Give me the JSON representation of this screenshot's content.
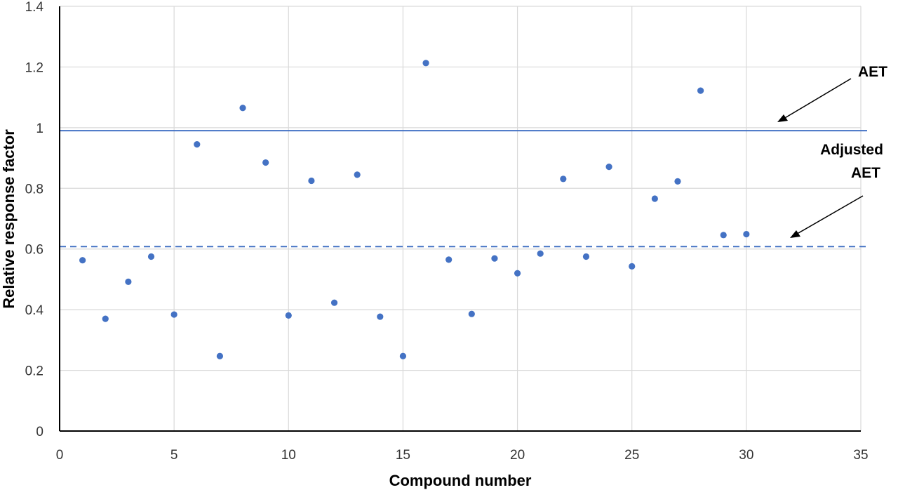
{
  "chart_data": {
    "type": "scatter",
    "xlabel": "Compound number",
    "ylabel": "Relative response factor",
    "xlim": [
      0,
      35
    ],
    "ylim": [
      0,
      1.4
    ],
    "xticks": [
      "0",
      "5",
      "10",
      "15",
      "20",
      "25",
      "30",
      "35"
    ],
    "yticks": [
      "0",
      "0.2",
      "0.4",
      "0.6",
      "0.8",
      "1",
      "1.2",
      "1.4"
    ],
    "grid": true,
    "marker_color": "#4472C4",
    "line_color": "#4472C4",
    "series": [
      {
        "x": [
          1,
          2,
          3,
          4,
          5,
          6,
          7,
          8,
          9,
          10,
          11,
          12,
          13,
          14,
          15,
          16,
          17,
          18,
          19,
          20,
          21,
          22,
          23,
          24,
          25,
          26,
          27,
          28,
          29,
          30
        ],
        "y": [
          0.563,
          0.37,
          0.492,
          0.575,
          0.384,
          0.945,
          0.247,
          1.065,
          0.885,
          0.381,
          0.825,
          0.423,
          0.845,
          0.377,
          0.247,
          1.213,
          0.565,
          0.386,
          0.569,
          0.52,
          0.585,
          0.831,
          0.575,
          0.871,
          0.543,
          0.766,
          0.823,
          1.122,
          0.646,
          0.649
        ]
      }
    ],
    "reference_lines": [
      {
        "label": "AET",
        "y": 0.99,
        "style": "solid"
      },
      {
        "label_lines": [
          "Adjusted",
          "AET"
        ],
        "y": 0.608,
        "style": "dashed"
      }
    ]
  }
}
